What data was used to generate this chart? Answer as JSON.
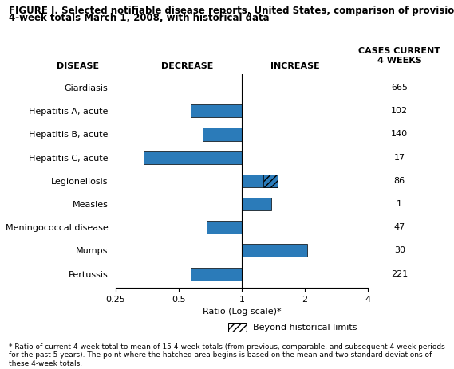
{
  "title_line1": "FIGURE I. Selected notifiable disease reports, United States, comparison of provisional",
  "title_line2": "4-week totals March 1, 2008, with historical data",
  "diseases": [
    "Giardiasis",
    "Hepatitis A, acute",
    "Hepatitis B, acute",
    "Hepatitis C, acute",
    "Legionellosis",
    "Measles",
    "Meningococcal disease",
    "Mumps",
    "Pertussis"
  ],
  "ratios": [
    1.0,
    0.57,
    0.65,
    0.34,
    1.48,
    1.38,
    0.68,
    2.05,
    0.57
  ],
  "beyond_limit": [
    false,
    false,
    false,
    false,
    true,
    false,
    false,
    false,
    false
  ],
  "beyond_limit_start": [
    null,
    null,
    null,
    null,
    1.27,
    null,
    null,
    null,
    null
  ],
  "cases": [
    "665",
    "102",
    "140",
    "17",
    "86",
    "1",
    "47",
    "30",
    "221"
  ],
  "bar_color": "#2B7BB9",
  "xlabel": "Ratio (Log scale)*",
  "xlim_log": [
    0.25,
    4.0
  ],
  "xticks": [
    0.25,
    0.5,
    1.0,
    2.0,
    4.0
  ],
  "xtick_labels": [
    "0.25",
    "0.5",
    "1",
    "2",
    "4"
  ],
  "decrease_label": "DECREASE",
  "increase_label": "INCREASE",
  "disease_label": "DISEASE",
  "cases_label": "CASES CURRENT\n4 WEEKS",
  "footnote": "* Ratio of current 4-week total to mean of 15 4-week totals (from previous, comparable, and subsequent 4-week periods\nfor the past 5 years). The point where the hatched area begins is based on the mean and two standard deviations of\nthese 4-week totals.",
  "legend_label": "Beyond historical limits",
  "background_color": "#ffffff"
}
